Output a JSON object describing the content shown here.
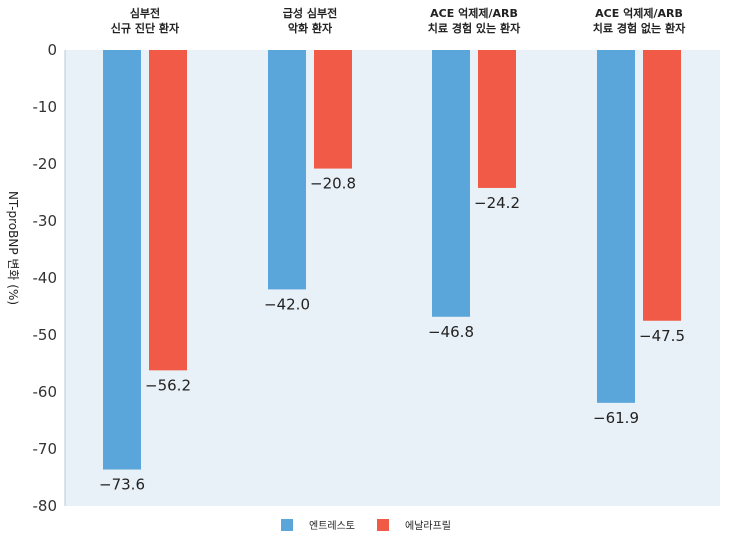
{
  "chart_data": {
    "type": "bar",
    "ylabel": "NT-proBNP 변화 (%)",
    "ylim": [
      -80,
      0
    ],
    "yticks": [
      0,
      -10,
      -20,
      -30,
      -40,
      -50,
      -60,
      -70,
      -80
    ],
    "categories": [
      [
        "심부전",
        "신규 진단 환자"
      ],
      [
        "급성 심부전",
        "악화 환자"
      ],
      [
        "ACE 억제제/ARB",
        "치료 경험 있는 환자"
      ],
      [
        "ACE 억제제/ARB",
        "치료 경험 없는 환자"
      ]
    ],
    "series": [
      {
        "name": "엔트레스토",
        "color": "#5aa5da",
        "values": [
          -73.6,
          -42.0,
          -46.8,
          -61.9
        ]
      },
      {
        "name": "에날라프릴",
        "color": "#f05a46",
        "values": [
          -56.2,
          -20.8,
          -24.2,
          -47.5
        ]
      }
    ],
    "plot_background": "#e9f1f8",
    "legend_position": "bottom-center"
  }
}
